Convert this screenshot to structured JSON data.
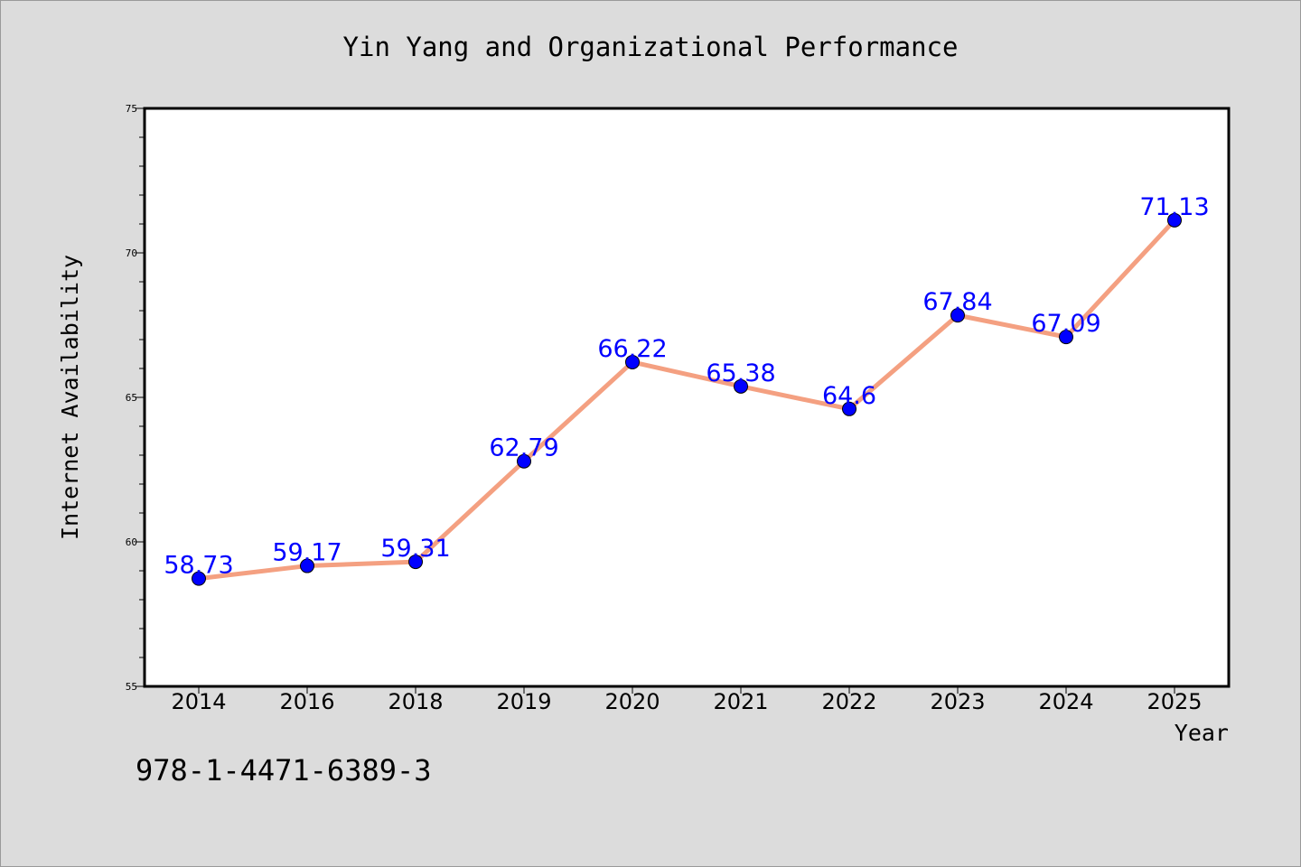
{
  "chart_data": {
    "type": "line",
    "title": "Yin Yang and Organizational Performance",
    "xlabel": "Year",
    "ylabel": "Internet Availability",
    "categories": [
      "2014",
      "2016",
      "2018",
      "2019",
      "2020",
      "2021",
      "2022",
      "2023",
      "2024",
      "2025"
    ],
    "series": [
      {
        "values": [
          58.73,
          59.17,
          59.31,
          62.79,
          66.22,
          65.38,
          64.6,
          67.84,
          67.09,
          71.13
        ]
      }
    ],
    "data_labels": [
      "58.73",
      "59.17",
      "59.31",
      "62.79",
      "66.22",
      "65.38",
      "64.6",
      "67.84",
      "67.09",
      "71.13"
    ],
    "ylim": [
      55,
      75
    ],
    "yticks": [
      55,
      60,
      65,
      70,
      75
    ],
    "grid": false,
    "line_color": "#f4a081",
    "marker_color": "#0000ff",
    "label_color": "#0000ff",
    "plot_background": "#ffffff",
    "figure_background": "#dcdcdc"
  },
  "footer": {
    "isbn": "978-1-4471-6389-3"
  }
}
